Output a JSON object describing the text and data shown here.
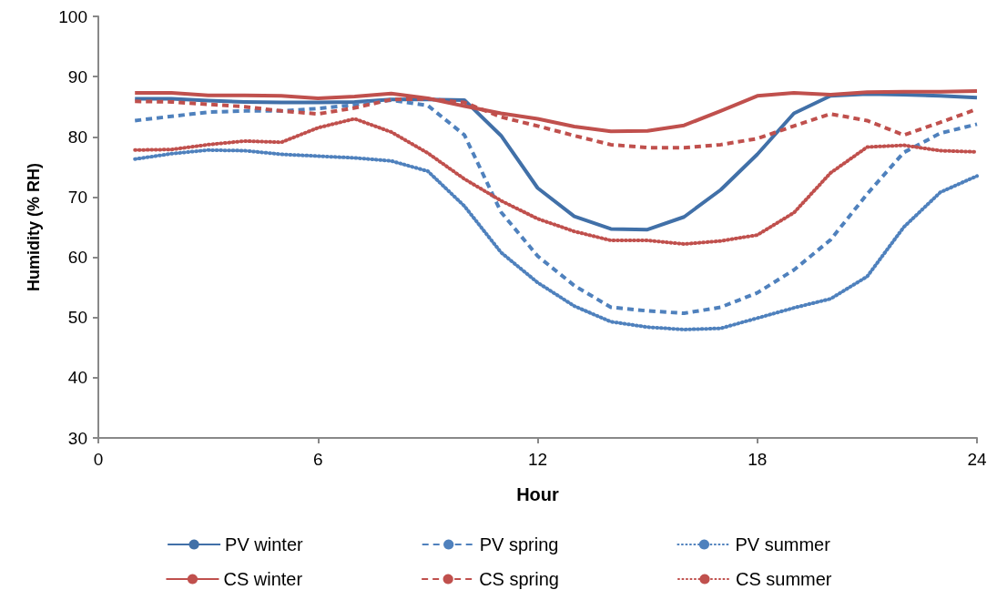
{
  "chart_data": {
    "type": "line",
    "xlabel": "Hour",
    "ylabel": "Humidity (% RH)",
    "xlim": [
      0,
      24
    ],
    "xticks": [
      0,
      6,
      12,
      18,
      24
    ],
    "ylim": [
      30,
      100
    ],
    "yticks": [
      30,
      40,
      50,
      60,
      70,
      80,
      90,
      100
    ],
    "grid": false,
    "legend": "bottom",
    "marker": "none",
    "x": [
      1,
      2,
      3,
      4,
      5,
      6,
      7,
      8,
      9,
      10,
      11,
      12,
      13,
      14,
      15,
      16,
      17,
      18,
      19,
      20,
      21,
      22,
      23,
      24
    ],
    "series": [
      {
        "name": "PV winter",
        "color": "#4170a8",
        "line_style": "solid",
        "values": [
          86.3,
          86.3,
          86,
          85.8,
          85.7,
          85.7,
          85.8,
          86.2,
          86.2,
          86.1,
          80.2,
          71.5,
          66.8,
          64.7,
          64.6,
          66.7,
          71.2,
          77.1,
          83.9,
          86.8,
          87.1,
          87.0,
          86.8,
          86.5
        ]
      },
      {
        "name": "PV spring",
        "color": "#4f81bd",
        "line_style": "dashed",
        "values": [
          82.7,
          83.4,
          84.1,
          84.3,
          84.3,
          84.7,
          85.3,
          86.1,
          85.2,
          80.3,
          67.5,
          60.2,
          55.3,
          51.7,
          51.1,
          50.7,
          51.7,
          54.1,
          57.9,
          62.9,
          70.5,
          77.4,
          80.6,
          82.1
        ]
      },
      {
        "name": "PV summer",
        "color": "#4f81bd",
        "line_style": "dotted",
        "values": [
          76.3,
          77.2,
          77.8,
          77.7,
          77.1,
          76.8,
          76.5,
          76.0,
          74.3,
          68.5,
          60.8,
          55.8,
          51.9,
          49.3,
          48.4,
          48.0,
          48.2,
          49.9,
          51.6,
          53.1,
          56.8,
          65.0,
          70.8,
          73.5
        ]
      },
      {
        "name": "CS winter",
        "color": "#c0504d",
        "line_style": "solid",
        "values": [
          87.3,
          87.3,
          86.9,
          86.9,
          86.8,
          86.4,
          86.7,
          87.2,
          86.4,
          85.1,
          83.9,
          83.0,
          81.7,
          80.9,
          81.0,
          81.9,
          84.3,
          86.8,
          87.3,
          87.0,
          87.4,
          87.5,
          87.5,
          87.6
        ]
      },
      {
        "name": "CS spring",
        "color": "#c0504d",
        "line_style": "dashed",
        "values": [
          85.9,
          85.8,
          85.4,
          85.0,
          84.3,
          83.8,
          84.8,
          86.2,
          86.3,
          85.7,
          83.3,
          81.8,
          80.2,
          78.7,
          78.2,
          78.2,
          78.7,
          79.7,
          81.8,
          83.8,
          82.7,
          80.3,
          82.4,
          84.6
        ]
      },
      {
        "name": "CS summer",
        "color": "#c0504d",
        "line_style": "dotted",
        "values": [
          77.8,
          77.9,
          78.7,
          79.3,
          79.1,
          81.5,
          83.0,
          80.8,
          77.3,
          73.0,
          69.4,
          66.4,
          64.3,
          62.8,
          62.8,
          62.2,
          62.7,
          63.7,
          67.4,
          74.0,
          78.3,
          78.6,
          77.7,
          77.5
        ]
      }
    ]
  }
}
